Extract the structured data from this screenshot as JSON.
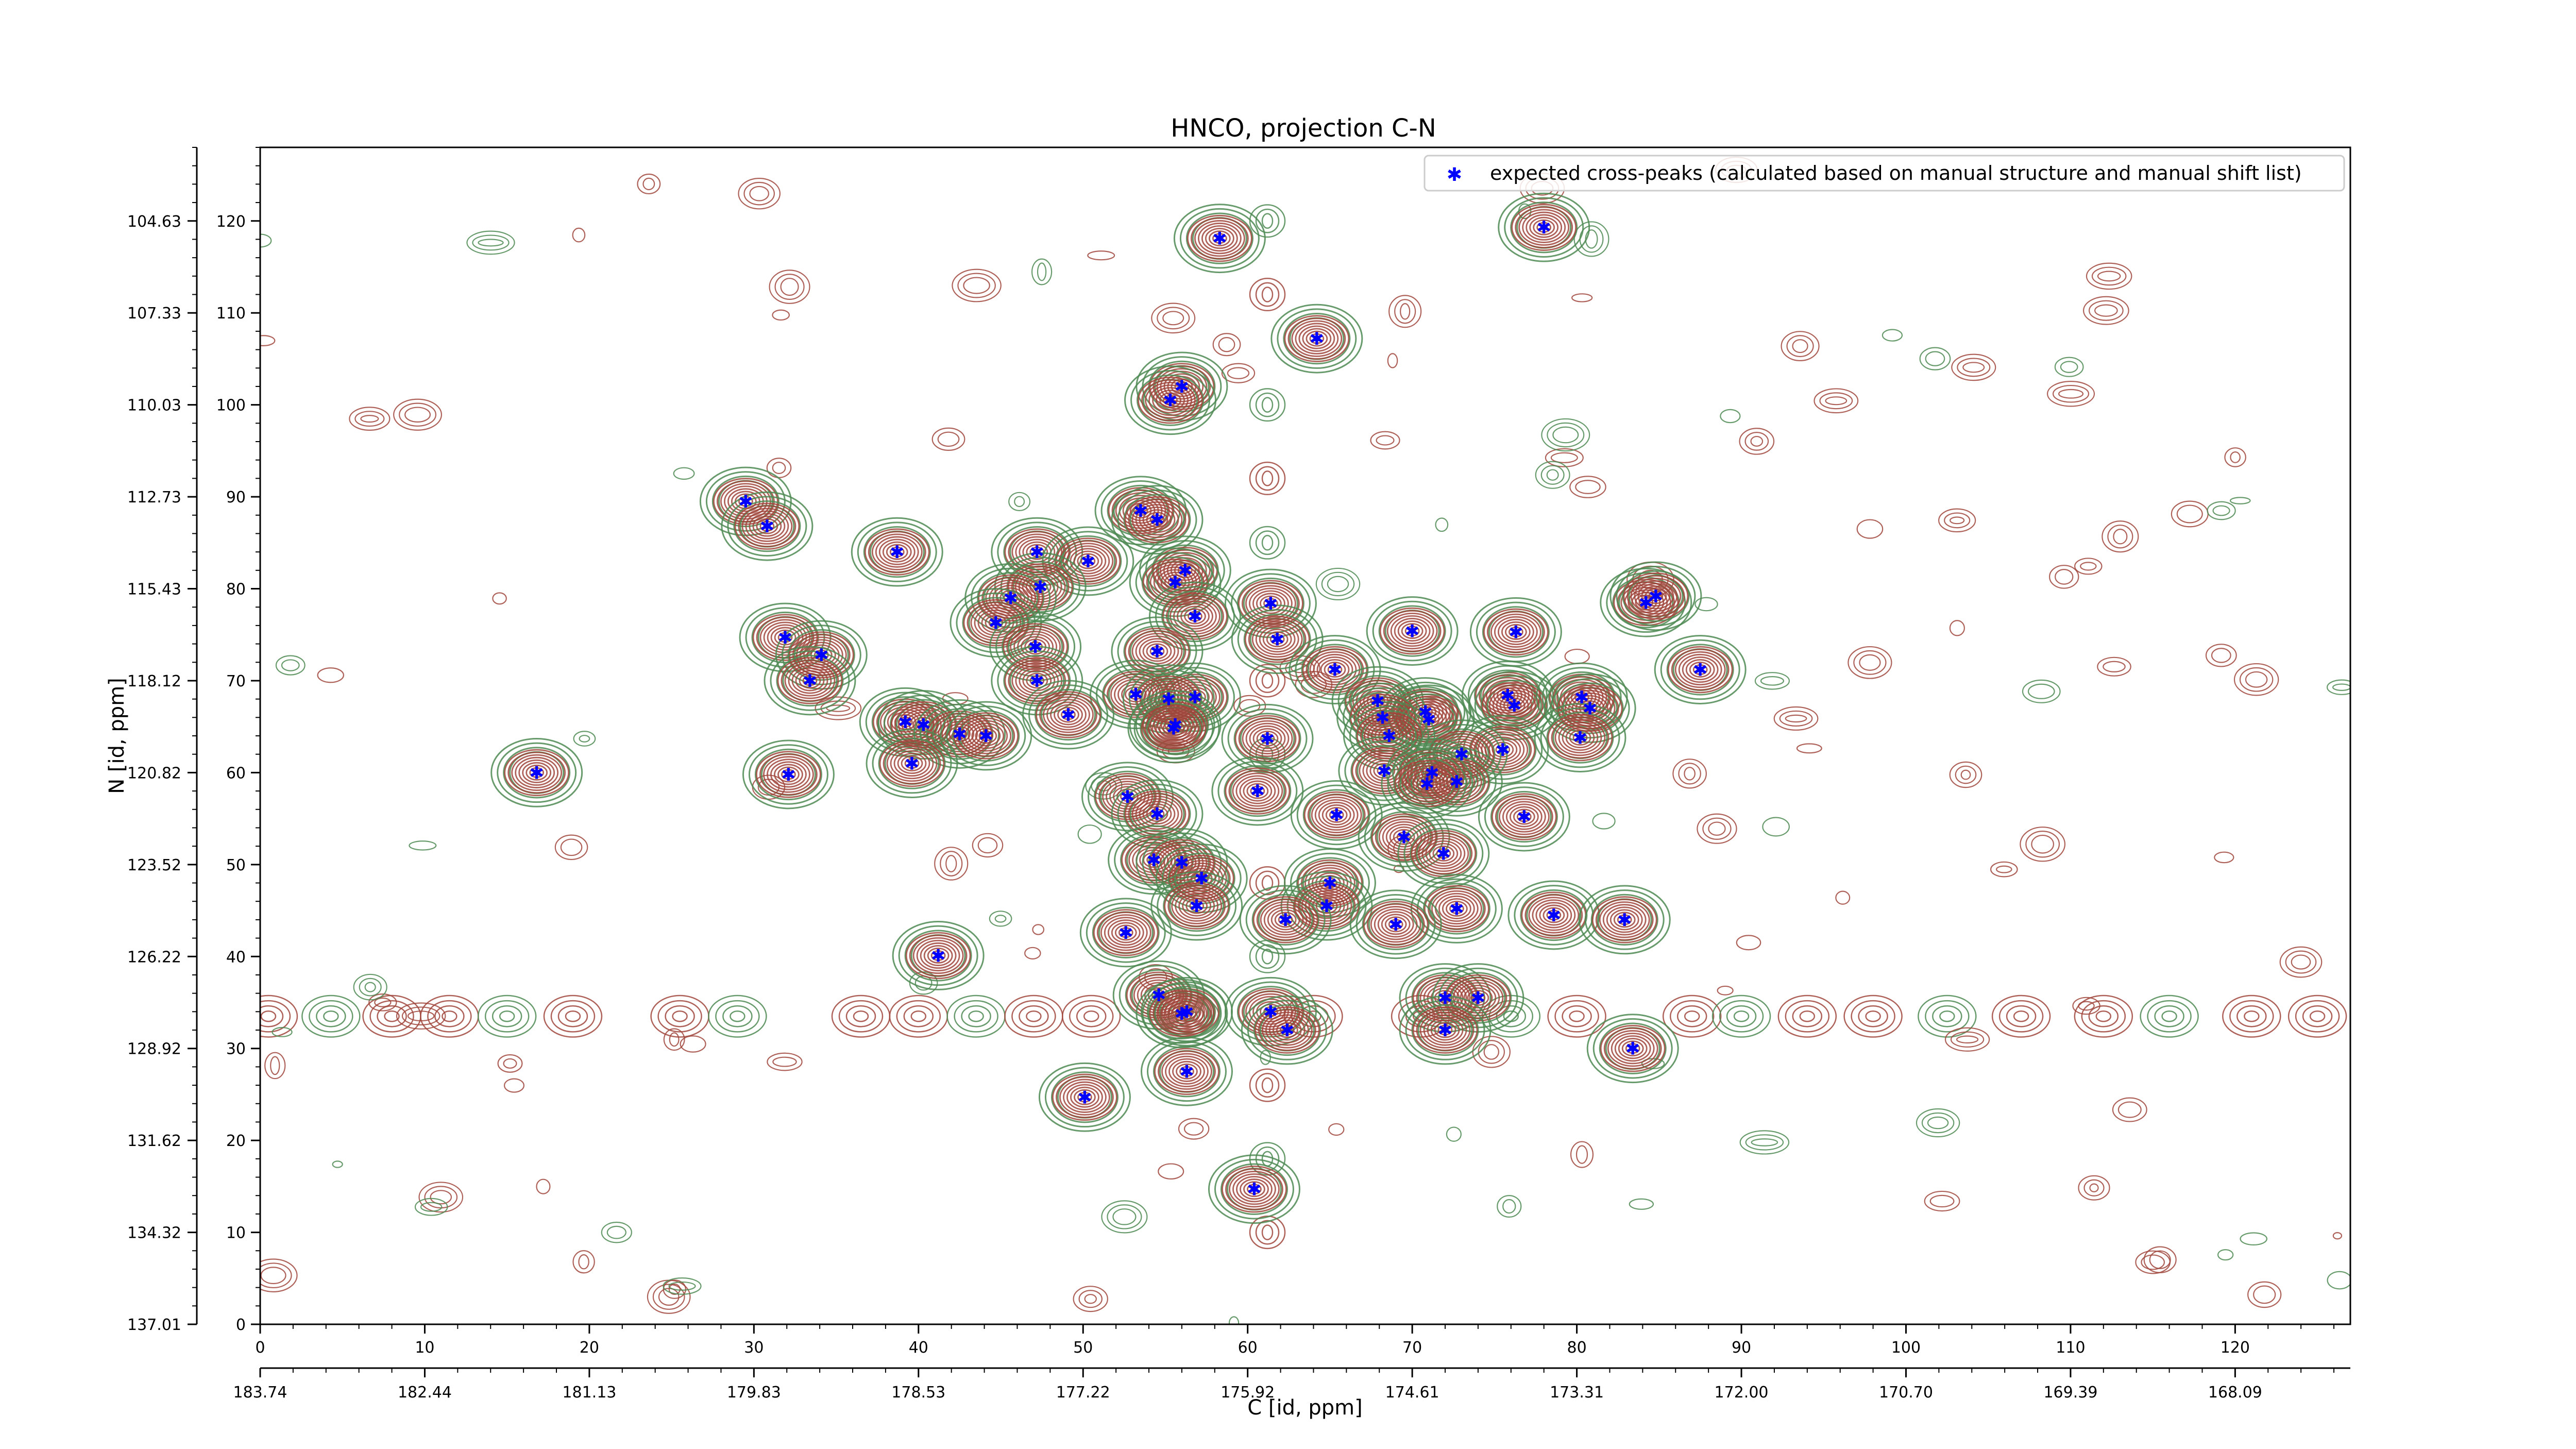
{
  "chart_data": {
    "type": "scatter",
    "title": "HNCO, projection C-N",
    "xlabel": "C [id, ppm]",
    "ylabel": "N [id, ppm]",
    "xlim": [
      0,
      127
    ],
    "ylim": [
      0,
      128
    ],
    "x_ticks": [
      0,
      10,
      20,
      30,
      40,
      50,
      60,
      70,
      80,
      90,
      100,
      110,
      120
    ],
    "y_ticks": [
      0,
      10,
      20,
      30,
      40,
      50,
      60,
      70,
      80,
      90,
      100,
      110,
      120
    ],
    "x_ppm_tick_labels": [
      "183.74",
      "182.44",
      "181.13",
      "179.83",
      "178.53",
      "177.22",
      "175.92",
      "174.61",
      "173.31",
      "172.00",
      "170.70",
      "169.39",
      "168.09"
    ],
    "y_ppm_tick_labels": [
      "137.01",
      "134.32",
      "131.62",
      "128.92",
      "126.22",
      "123.52",
      "120.82",
      "118.12",
      "115.43",
      "112.73",
      "110.03",
      "107.33",
      "104.63"
    ],
    "legend": {
      "label": "expected cross-peaks (calculated based on manual structure and manual shift list)",
      "location": "top-right"
    },
    "colors": {
      "positive_contour": "#a0453b",
      "negative_contour": "#4e8a52",
      "peak_marker": "#0000ff"
    },
    "series": [
      {
        "name": "expected cross-peaks (calculated based on manual structure and manual shift list)",
        "points": [
          [
            58.3,
            118.1
          ],
          [
            78.0,
            119.3
          ],
          [
            64.2,
            107.2
          ],
          [
            56.0,
            102.0
          ],
          [
            55.3,
            100.5
          ],
          [
            53.5,
            88.5
          ],
          [
            54.5,
            87.5
          ],
          [
            29.5,
            89.5
          ],
          [
            30.8,
            86.8
          ],
          [
            38.7,
            84.0
          ],
          [
            47.2,
            84.0
          ],
          [
            50.3,
            83.0
          ],
          [
            56.2,
            82.0
          ],
          [
            55.6,
            80.7
          ],
          [
            47.4,
            80.2
          ],
          [
            45.6,
            79.0
          ],
          [
            61.4,
            78.4
          ],
          [
            56.8,
            77.0
          ],
          [
            44.7,
            76.3
          ],
          [
            70.0,
            75.4
          ],
          [
            76.3,
            75.3
          ],
          [
            31.9,
            74.7
          ],
          [
            34.1,
            72.8
          ],
          [
            47.1,
            73.7
          ],
          [
            54.5,
            73.2
          ],
          [
            61.8,
            74.5
          ],
          [
            65.3,
            71.2
          ],
          [
            84.2,
            78.5
          ],
          [
            84.8,
            79.2
          ],
          [
            87.5,
            71.2
          ],
          [
            33.4,
            70.0
          ],
          [
            47.2,
            70.0
          ],
          [
            53.2,
            68.5
          ],
          [
            56.8,
            68.2
          ],
          [
            55.2,
            68.0
          ],
          [
            67.9,
            67.8
          ],
          [
            75.8,
            68.4
          ],
          [
            76.2,
            67.3
          ],
          [
            80.3,
            68.2
          ],
          [
            80.8,
            67.0
          ],
          [
            70.8,
            66.6
          ],
          [
            71.0,
            65.8
          ],
          [
            68.2,
            66.0
          ],
          [
            49.1,
            66.3
          ],
          [
            39.2,
            65.5
          ],
          [
            40.3,
            65.2
          ],
          [
            42.5,
            64.2
          ],
          [
            44.1,
            64.0
          ],
          [
            68.6,
            64.0
          ],
          [
            55.6,
            65.2
          ],
          [
            55.5,
            64.8
          ],
          [
            61.2,
            63.7
          ],
          [
            80.2,
            63.8
          ],
          [
            75.5,
            62.5
          ],
          [
            73.0,
            62.0
          ],
          [
            39.6,
            61.0
          ],
          [
            68.3,
            60.2
          ],
          [
            71.2,
            60.0
          ],
          [
            72.7,
            59.0
          ],
          [
            70.9,
            58.8
          ],
          [
            32.1,
            59.8
          ],
          [
            16.8,
            60.0
          ],
          [
            52.7,
            57.4
          ],
          [
            60.6,
            58.0
          ],
          [
            54.5,
            55.5
          ],
          [
            65.4,
            55.4
          ],
          [
            76.8,
            55.2
          ],
          [
            69.5,
            53.0
          ],
          [
            71.9,
            51.2
          ],
          [
            54.3,
            50.5
          ],
          [
            56.0,
            50.2
          ],
          [
            57.2,
            48.5
          ],
          [
            65.0,
            48.0
          ],
          [
            64.8,
            45.5
          ],
          [
            72.7,
            45.2
          ],
          [
            56.9,
            45.5
          ],
          [
            78.6,
            44.5
          ],
          [
            82.9,
            44.0
          ],
          [
            62.3,
            44.0
          ],
          [
            69.0,
            43.5
          ],
          [
            52.6,
            42.6
          ],
          [
            41.2,
            40.1
          ],
          [
            54.6,
            35.8
          ],
          [
            56.3,
            34.0
          ],
          [
            56.0,
            33.8
          ],
          [
            61.4,
            34.0
          ],
          [
            62.4,
            32.0
          ],
          [
            72.0,
            35.5
          ],
          [
            74.0,
            35.5
          ],
          [
            72.0,
            32.0
          ],
          [
            83.4,
            30.0
          ],
          [
            56.3,
            27.5
          ],
          [
            50.1,
            24.7
          ],
          [
            60.4,
            14.7
          ]
        ]
      }
    ]
  }
}
